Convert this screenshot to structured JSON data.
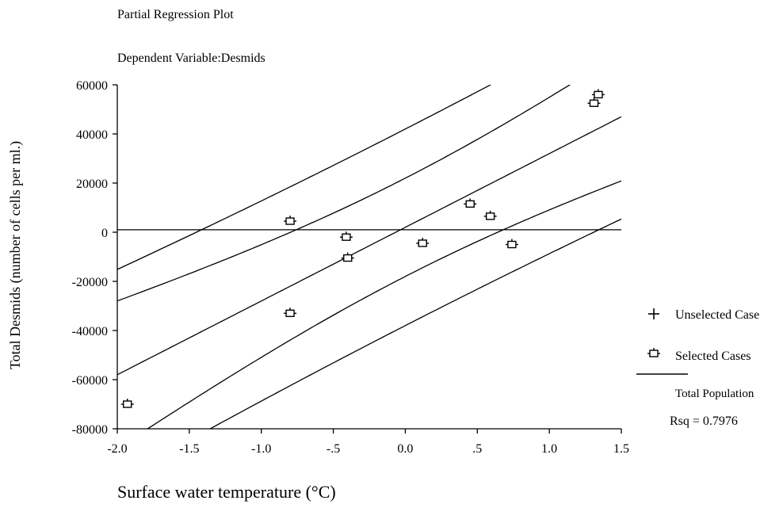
{
  "chart_data": {
    "type": "scatter",
    "title": "Partial Regression Plot",
    "subtitle": "Dependent Variable:Desmids",
    "xlabel": "Surface water temperature (°C)",
    "ylabel": "Total Desmids (number of cells per ml.)",
    "xlim": [
      -2.0,
      1.5
    ],
    "ylim": [
      -80000,
      60000
    ],
    "x_ticks": [
      -2.0,
      -1.5,
      -1.0,
      -0.5,
      0.0,
      0.5,
      1.0,
      1.5
    ],
    "x_tick_labels": [
      "-2.0",
      "-1.5",
      "-1.0",
      "-.5",
      "0.0",
      ".5",
      "1.0",
      "1.5"
    ],
    "y_ticks": [
      60000,
      40000,
      20000,
      0,
      -20000,
      -40000,
      -60000,
      -80000
    ],
    "y_tick_labels": [
      "60000",
      "40000",
      "20000",
      "0",
      "-20000",
      "-40000",
      "-60000",
      "-80000"
    ],
    "reference_line_y": 1000,
    "series": [
      {
        "name": "Selected Cases",
        "marker": "square-tick",
        "points": [
          {
            "x": -1.93,
            "y": -70000
          },
          {
            "x": -0.8,
            "y": 4500
          },
          {
            "x": -0.8,
            "y": -33000
          },
          {
            "x": -0.41,
            "y": -2000
          },
          {
            "x": -0.4,
            "y": -10500
          },
          {
            "x": 0.12,
            "y": -4500
          },
          {
            "x": 0.45,
            "y": 11500
          },
          {
            "x": 0.59,
            "y": 6500
          },
          {
            "x": 0.74,
            "y": -5000
          },
          {
            "x": 1.31,
            "y": 52500
          },
          {
            "x": 1.34,
            "y": 56000
          }
        ]
      }
    ],
    "fit_line": {
      "name": "Total Population",
      "intercept": 2000,
      "slope": 30000
    },
    "confidence_band": {
      "center": 2000,
      "slope": 30000,
      "half_width_min": 20000,
      "x0": 0.0,
      "curvature": 3200
    },
    "prediction_band": {
      "half_width_min": 40000,
      "curvature": 2200
    },
    "legend": {
      "items": [
        {
          "label": "Unselected Case",
          "marker": "plus"
        },
        {
          "label": "Selected Cases",
          "marker": "square-tick"
        }
      ],
      "line_label": "Total Population",
      "rsq_text": "Rsq = 0.7976"
    },
    "grid": false
  }
}
